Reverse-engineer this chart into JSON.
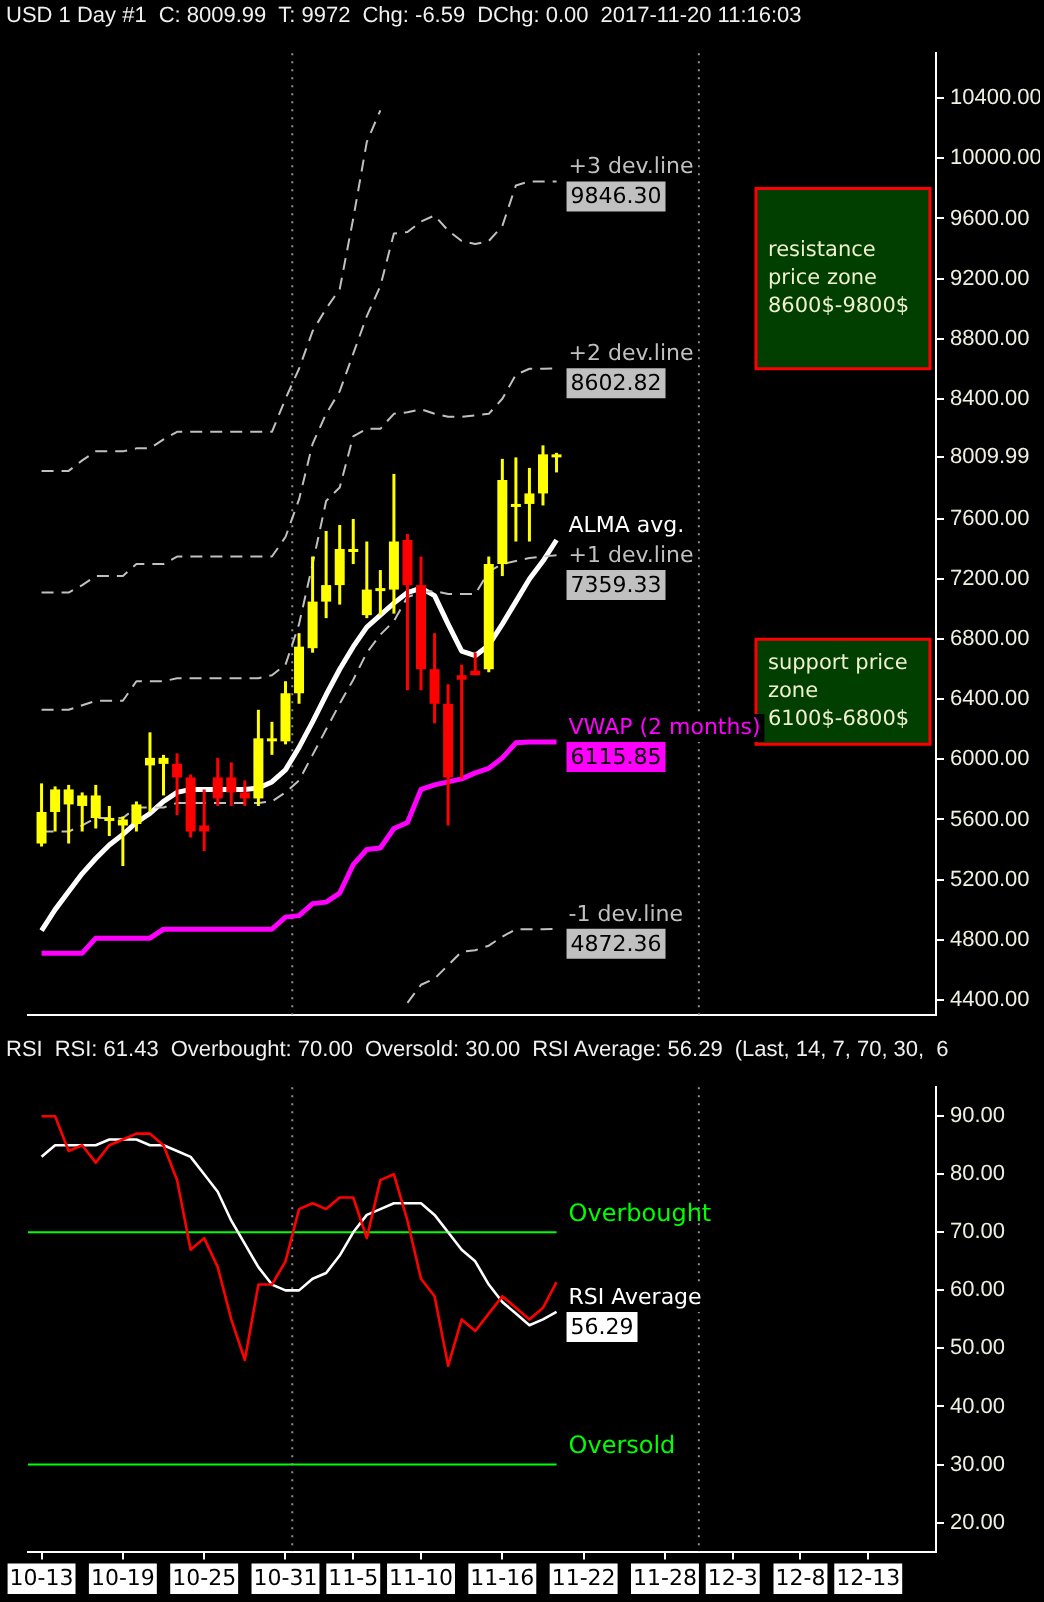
{
  "chart_data": [
    {
      "type": "candlestick",
      "title": "USD  1 Day  #1",
      "annotations": [
        "C: 8009.99",
        "T: 9972",
        "Chg: -6.59",
        "DChg: 0.00",
        "2017-11-20 11:16:03"
      ],
      "x": [
        "2017-10-13",
        "2017-10-14",
        "2017-10-15",
        "2017-10-16",
        "2017-10-17",
        "2017-10-18",
        "2017-10-19",
        "2017-10-20",
        "2017-10-21",
        "2017-10-22",
        "2017-10-23",
        "2017-10-24",
        "2017-10-25",
        "2017-10-26",
        "2017-10-27",
        "2017-10-28",
        "2017-10-29",
        "2017-10-30",
        "2017-10-31",
        "2017-11-01",
        "2017-11-02",
        "2017-11-03",
        "2017-11-04",
        "2017-11-05",
        "2017-11-06",
        "2017-11-07",
        "2017-11-08",
        "2017-11-09",
        "2017-11-10",
        "2017-11-11",
        "2017-11-12",
        "2017-11-13",
        "2017-11-14",
        "2017-11-15",
        "2017-11-16",
        "2017-11-17",
        "2017-11-18",
        "2017-11-19",
        "2017-11-20"
      ],
      "ohlc": [
        [
          5440,
          5840,
          5420,
          5650
        ],
        [
          5650,
          5820,
          5520,
          5800
        ],
        [
          5700,
          5830,
          5440,
          5800
        ],
        [
          5690,
          5780,
          5520,
          5760
        ],
        [
          5610,
          5830,
          5540,
          5760
        ],
        [
          5590,
          5690,
          5490,
          5610
        ],
        [
          5560,
          5620,
          5290,
          5600
        ],
        [
          5570,
          5720,
          5520,
          5700
        ],
        [
          5960,
          6180,
          5650,
          6010
        ],
        [
          5970,
          6030,
          5760,
          6010
        ],
        [
          5970,
          6040,
          5630,
          5880
        ],
        [
          5880,
          5900,
          5480,
          5520
        ],
        [
          5560,
          5800,
          5390,
          5520
        ],
        [
          5880,
          6010,
          5690,
          5740
        ],
        [
          5880,
          5980,
          5690,
          5780
        ],
        [
          5780,
          5860,
          5690,
          5740
        ],
        [
          5740,
          6330,
          5690,
          6140
        ],
        [
          6120,
          6250,
          6030,
          6140
        ],
        [
          6120,
          6520,
          6100,
          6440
        ],
        [
          6440,
          6840,
          6370,
          6750
        ],
        [
          6740,
          7350,
          6710,
          7050
        ],
        [
          7050,
          7520,
          6940,
          7160
        ],
        [
          7160,
          7560,
          7030,
          7400
        ],
        [
          7390,
          7600,
          7300,
          7400
        ],
        [
          6960,
          7450,
          6940,
          7130
        ],
        [
          7120,
          7260,
          6960,
          7140
        ],
        [
          7130,
          7900,
          6970,
          7450
        ],
        [
          7460,
          7500,
          6460,
          7160
        ],
        [
          7160,
          7350,
          6460,
          6600
        ],
        [
          6600,
          6840,
          6240,
          6370
        ],
        [
          6370,
          6500,
          5560,
          5880
        ],
        [
          6560,
          6630,
          5870,
          6530
        ],
        [
          6590,
          6710,
          6560,
          6560
        ],
        [
          6600,
          7350,
          6580,
          7300
        ],
        [
          7300,
          8000,
          7220,
          7860
        ],
        [
          7680,
          8010,
          7450,
          7700
        ],
        [
          7700,
          7940,
          7450,
          7770
        ],
        [
          7770,
          8090,
          7690,
          8030
        ],
        [
          8030,
          8040,
          7910,
          8009.99
        ]
      ],
      "colors": [
        "#ffff00",
        "#ffff00",
        "#ffff00",
        "#ffff00",
        "#ffff00",
        "#ffff00",
        "#ffff00",
        "#ffff00",
        "#ffff00",
        "#ffff00",
        "#ff0000",
        "#ff0000",
        "#ff0000",
        "#ff0000",
        "#ff0000",
        "#ff0000",
        "#ffff00",
        "#ffff00",
        "#ffff00",
        "#ffff00",
        "#ffff00",
        "#ffff00",
        "#ffff00",
        "#ffff00",
        "#ffff00",
        "#ffff00",
        "#ffff00",
        "#ff0000",
        "#ff0000",
        "#ff0000",
        "#ff0000",
        "#ff0000",
        "#ff0000",
        "#ffff00",
        "#ffff00",
        "#ffff00",
        "#ffff00",
        "#ffff00",
        "#ffff00"
      ],
      "series": [
        {
          "type": "line",
          "color": "#c0c0c0",
          "line_style": "dashed",
          "values": [
            7920,
            7920,
            7920,
            7990,
            8050,
            8050,
            8050,
            8070,
            8070,
            8130,
            8180,
            8180,
            8180,
            8180,
            8180,
            8180,
            8180,
            8180,
            8400,
            8600,
            8850,
            9000,
            9130,
            9600,
            10110,
            10320,
            null,
            null,
            null,
            null,
            null,
            null,
            null,
            null,
            null,
            null,
            null,
            null,
            null
          ]
        },
        {
          "type": "line",
          "name": "+3 dev.line",
          "color": "#c0c0c0",
          "line_style": "dashed",
          "values": [
            7110,
            7110,
            7110,
            7160,
            7220,
            7220,
            7220,
            7300,
            7300,
            7300,
            7350,
            7350,
            7350,
            7350,
            7350,
            7350,
            7350,
            7350,
            7480,
            7730,
            8100,
            8300,
            8450,
            8700,
            8950,
            9150,
            9500,
            9510,
            9580,
            9620,
            9520,
            9450,
            9430,
            9450,
            9550,
            9820,
            9846,
            9846,
            9846.3
          ],
          "value_labels": [
            null,
            null,
            null,
            null,
            null,
            null,
            null,
            null,
            null,
            null,
            null,
            null,
            null,
            null,
            null,
            null,
            null,
            null,
            null,
            null,
            null,
            null,
            null,
            null,
            null,
            null,
            null,
            null,
            null,
            null,
            null,
            null,
            null,
            null,
            null,
            null,
            null,
            null,
            "9846.30"
          ]
        },
        {
          "type": "line",
          "name": "+2 dev.line",
          "color": "#c0c0c0",
          "line_style": "dashed",
          "values": [
            6330,
            6330,
            6330,
            6360,
            6390,
            6390,
            6390,
            6520,
            6520,
            6520,
            6540,
            6540,
            6540,
            6540,
            6540,
            6540,
            6540,
            6560,
            6630,
            6900,
            7300,
            7720,
            7810,
            8150,
            8200,
            8200,
            8300,
            8310,
            8330,
            8300,
            8280,
            8280,
            8290,
            8300,
            8400,
            8560,
            8600,
            8600,
            8602.82
          ],
          "value_labels": [
            null,
            null,
            null,
            null,
            null,
            null,
            null,
            null,
            null,
            null,
            null,
            null,
            null,
            null,
            null,
            null,
            null,
            null,
            null,
            null,
            null,
            null,
            null,
            null,
            null,
            null,
            null,
            null,
            null,
            null,
            null,
            null,
            null,
            null,
            null,
            null,
            null,
            null,
            "8602.82"
          ]
        },
        {
          "type": "line",
          "name": "+1 dev.line",
          "color": "#c0c0c0",
          "line_style": "dashed",
          "values": [
            5520,
            5520,
            5520,
            5560,
            5610,
            5610,
            5610,
            5680,
            5680,
            5680,
            5710,
            5710,
            5710,
            5710,
            5710,
            5710,
            5710,
            5720,
            5780,
            5860,
            6030,
            6200,
            6370,
            6530,
            6710,
            6830,
            6920,
            7080,
            7110,
            7120,
            7100,
            7100,
            7100,
            7250,
            7300,
            7320,
            7340,
            7350,
            7359.33
          ],
          "value_labels": [
            null,
            null,
            null,
            null,
            null,
            null,
            null,
            null,
            null,
            null,
            null,
            null,
            null,
            null,
            null,
            null,
            null,
            null,
            null,
            null,
            null,
            null,
            null,
            null,
            null,
            null,
            null,
            null,
            null,
            null,
            null,
            null,
            null,
            null,
            null,
            null,
            null,
            null,
            "7359.33"
          ]
        },
        {
          "type": "line",
          "name": "-1 dev.line",
          "color": "#c0c0c0",
          "line_style": "dashed",
          "values": [
            null,
            null,
            null,
            null,
            null,
            null,
            null,
            null,
            null,
            null,
            null,
            null,
            null,
            null,
            null,
            null,
            null,
            null,
            null,
            null,
            null,
            null,
            null,
            null,
            null,
            null,
            null,
            4380,
            4500,
            4540,
            4630,
            4720,
            4730,
            4760,
            4820,
            4870,
            4870,
            4870,
            4872.36
          ],
          "value_labels": [
            null,
            null,
            null,
            null,
            null,
            null,
            null,
            null,
            null,
            null,
            null,
            null,
            null,
            null,
            null,
            null,
            null,
            null,
            null,
            null,
            null,
            null,
            null,
            null,
            null,
            null,
            null,
            null,
            null,
            null,
            null,
            null,
            null,
            null,
            null,
            null,
            null,
            null,
            "4872.36"
          ]
        },
        {
          "type": "line",
          "name": "ALMA avg.",
          "color": "#ffffff",
          "values": [
            4860,
            5000,
            5120,
            5240,
            5340,
            5430,
            5500,
            5580,
            5640,
            5720,
            5780,
            5800,
            5800,
            5800,
            5800,
            5800,
            5810,
            5850,
            5930,
            6080,
            6250,
            6430,
            6600,
            6750,
            6880,
            6960,
            7040,
            7110,
            7140,
            7090,
            6900,
            6720,
            6690,
            6760,
            6900,
            7050,
            7200,
            7320,
            7460
          ]
        },
        {
          "type": "line",
          "name": "VWAP (2 months)",
          "color": "#ff00ff",
          "values": [
            4710,
            4710,
            4710,
            4710,
            4810,
            4810,
            4810,
            4810,
            4810,
            4870,
            4870,
            4870,
            4870,
            4870,
            4870,
            4870,
            4870,
            4870,
            4950,
            4960,
            5040,
            5050,
            5110,
            5300,
            5400,
            5410,
            5540,
            5580,
            5800,
            5830,
            5850,
            5870,
            5910,
            5940,
            6010,
            6110,
            6116,
            6116,
            6115.85
          ],
          "value_labels": [
            null,
            null,
            null,
            null,
            null,
            null,
            null,
            null,
            null,
            null,
            null,
            null,
            null,
            null,
            null,
            null,
            null,
            null,
            null,
            null,
            null,
            null,
            null,
            null,
            null,
            null,
            null,
            null,
            null,
            null,
            null,
            null,
            null,
            null,
            null,
            null,
            null,
            null,
            "6115.85"
          ]
        }
      ],
      "bands": [
        {
          "axis": "y",
          "from": 8600,
          "to": 9800,
          "label": "resistance price zone 8600$-9800$",
          "color": "#003f00"
        },
        {
          "axis": "y",
          "from": 6100,
          "to": 6800,
          "label": "support price zone 6100$-6800$",
          "color": "#003f00"
        }
      ],
      "ref_lines": [
        {
          "axis": "x",
          "value": "2017-10-31T12:00",
          "color": "#909090",
          "line_style": "dotted"
        },
        {
          "axis": "x",
          "value": "2017-11-30T12:00",
          "color": "#909090",
          "line_style": "dotted"
        }
      ],
      "xlim": [
        "2017-10-12",
        "2017-12-18"
      ],
      "ylim": [
        4300,
        10700
      ],
      "yticks": [
        {
          "value": 4400,
          "label": "4400.00"
        },
        {
          "value": 4800,
          "label": "4800.00"
        },
        {
          "value": 5200,
          "label": "5200.00"
        },
        {
          "value": 5600,
          "label": "5600.00"
        },
        {
          "value": 6000,
          "label": "6000.00"
        },
        {
          "value": 6400,
          "label": "6400.00"
        },
        {
          "value": 6800,
          "label": "6800.00"
        },
        {
          "value": 7200,
          "label": "7200.00"
        },
        {
          "value": 7600,
          "label": "7600.00"
        },
        {
          "value": 8009.99,
          "label": "8009.99"
        },
        {
          "value": 8400,
          "label": "8400.00"
        },
        {
          "value": 8800,
          "label": "8800.00"
        },
        {
          "value": 9200,
          "label": "9200.00"
        },
        {
          "value": 9600,
          "label": "9600.00"
        },
        {
          "value": 10000,
          "label": "10000.00"
        },
        {
          "value": 10400,
          "label": "10400.00"
        }
      ],
      "tick_labels": "y"
    },
    {
      "type": "line",
      "title": "RSI",
      "annotations": [
        "RSI: 61.43",
        "Overbought: 70.00",
        "Oversold: 30.00",
        "RSI Average: 56.29",
        "(Last, 14, 7, 70, 30,",
        "6"
      ],
      "x": [
        "2017-10-13",
        "2017-10-14",
        "2017-10-15",
        "2017-10-16",
        "2017-10-17",
        "2017-10-18",
        "2017-10-19",
        "2017-10-20",
        "2017-10-21",
        "2017-10-22",
        "2017-10-23",
        "2017-10-24",
        "2017-10-25",
        "2017-10-26",
        "2017-10-27",
        "2017-10-28",
        "2017-10-29",
        "2017-10-30",
        "2017-10-31",
        "2017-11-01",
        "2017-11-02",
        "2017-11-03",
        "2017-11-04",
        "2017-11-05",
        "2017-11-06",
        "2017-11-07",
        "2017-11-08",
        "2017-11-09",
        "2017-11-10",
        "2017-11-11",
        "2017-11-12",
        "2017-11-13",
        "2017-11-14",
        "2017-11-15",
        "2017-11-16",
        "2017-11-17",
        "2017-11-18",
        "2017-11-19",
        "2017-11-20"
      ],
      "series": [
        {
          "color": "#ff0000",
          "values": [
            90,
            90,
            84,
            85,
            82,
            85,
            86,
            87,
            87,
            85,
            79,
            67,
            69,
            64,
            55,
            48,
            61,
            61,
            65,
            74,
            75,
            74,
            76,
            76,
            69,
            79,
            80,
            72,
            62,
            59,
            47,
            55,
            53,
            56,
            59,
            57,
            55,
            57,
            61.43
          ]
        },
        {
          "name": "RSI Average",
          "color": "#ffffff",
          "values": [
            83,
            85,
            85,
            85,
            85,
            86,
            86,
            86,
            85,
            85,
            84,
            83,
            80,
            77,
            72,
            68,
            64,
            61,
            60,
            60,
            62,
            63,
            66,
            70,
            73,
            74,
            75,
            75,
            75,
            73,
            70,
            67,
            65,
            61,
            58,
            56,
            54,
            55,
            56.29
          ],
          "value_labels": [
            null,
            null,
            null,
            null,
            null,
            null,
            null,
            null,
            null,
            null,
            null,
            null,
            null,
            null,
            null,
            null,
            null,
            null,
            null,
            null,
            null,
            null,
            null,
            null,
            null,
            null,
            null,
            null,
            null,
            null,
            null,
            null,
            null,
            null,
            null,
            null,
            null,
            null,
            "56.29"
          ]
        }
      ],
      "ref_lines": [
        {
          "axis": "y",
          "value": 70,
          "label": "Overbought",
          "color": "#00ff00",
          "line_style": "solid"
        },
        {
          "axis": "y",
          "value": 30,
          "label": "Oversold",
          "color": "#00ff00",
          "line_style": "solid"
        },
        {
          "axis": "x",
          "value": "2017-10-31T12:00",
          "color": "#909090",
          "line_style": "dotted"
        },
        {
          "axis": "x",
          "value": "2017-11-30T12:00",
          "color": "#909090",
          "line_style": "dotted"
        }
      ],
      "xlim": [
        "2017-10-12",
        "2017-12-18"
      ],
      "xticks": [
        {
          "value": "2017-10-13",
          "label": "10-13"
        },
        {
          "value": "2017-10-19",
          "label": "10-19"
        },
        {
          "value": "2017-10-25",
          "label": "10-25"
        },
        {
          "value": "2017-10-31",
          "label": "10-31"
        },
        {
          "value": "2017-11-05",
          "label": "11-5"
        },
        {
          "value": "2017-11-10",
          "label": "11-10"
        },
        {
          "value": "2017-11-16",
          "label": "11-16"
        },
        {
          "value": "2017-11-22",
          "label": "11-22"
        },
        {
          "value": "2017-11-28",
          "label": "11-28"
        },
        {
          "value": "2017-12-03",
          "label": "12-3"
        },
        {
          "value": "2017-12-08",
          "label": "12-8"
        },
        {
          "value": "2017-12-13",
          "label": "12-13"
        }
      ],
      "ylim": [
        15,
        95
      ],
      "yticks": [
        {
          "value": 20,
          "label": "20.00"
        },
        {
          "value": 30,
          "label": "30.00"
        },
        {
          "value": 40,
          "label": "40.00"
        },
        {
          "value": 50,
          "label": "50.00"
        },
        {
          "value": 60,
          "label": "60.00"
        },
        {
          "value": 70,
          "label": "70.00"
        },
        {
          "value": 80,
          "label": "80.00"
        },
        {
          "value": 90,
          "label": "90.00"
        }
      ]
    }
  ]
}
